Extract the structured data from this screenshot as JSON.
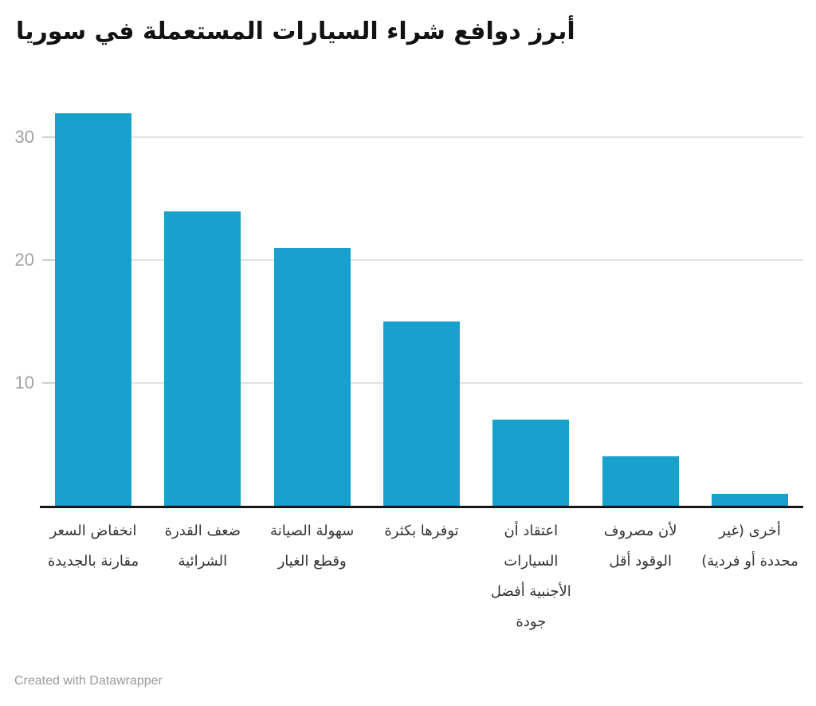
{
  "chart_data": {
    "type": "bar",
    "title": "أبرز دوافع شراء السيارات المستعملة في سوريا",
    "categories": [
      "انخفاض السعر مقارنة بالجديدة",
      "ضعف القدرة الشرائية",
      "سهولة الصيانة وقطع الغيار",
      "توفرها بكثرة",
      "اعتقاد أن السيارات الأجنبية أفضل جودة",
      "لأن مصروف الوقود أقل",
      "أخرى (غير محددة أو فردية)"
    ],
    "category_label_lines": [
      [
        "انخفاض السعر",
        "مقارنة بالجديدة"
      ],
      [
        "ضعف القدرة",
        "الشرائية"
      ],
      [
        "سهولة الصيانة",
        "وقطع الغيار"
      ],
      [
        "توفرها بكثرة"
      ],
      [
        "اعتقاد أن",
        "السيارات",
        "الأجنبية أفضل",
        "جودة"
      ],
      [
        "لأن مصروف",
        "الوقود أقل"
      ],
      [
        "أخرى (غير",
        "محددة أو فردية)"
      ]
    ],
    "values": [
      32,
      24,
      21,
      15,
      7,
      4,
      1
    ],
    "xlabel": "",
    "ylabel": "",
    "ylim": [
      0,
      33.4
    ],
    "yticks": [
      10,
      20,
      30
    ],
    "grid": "horizontal",
    "legend": "none",
    "text_direction": "rtl"
  },
  "footer": {
    "attribution": "Created with Datawrapper"
  },
  "colors": {
    "bar": "#18a1cd",
    "grid_line": "#e1e1e1",
    "tick_dash": "#cfcfcf",
    "baseline": "#161616",
    "y_tick_label": "#a2a2a2",
    "category_label": "#333333",
    "title": "#121212",
    "footer": "#9b9b9b",
    "background": "#ffffff"
  }
}
